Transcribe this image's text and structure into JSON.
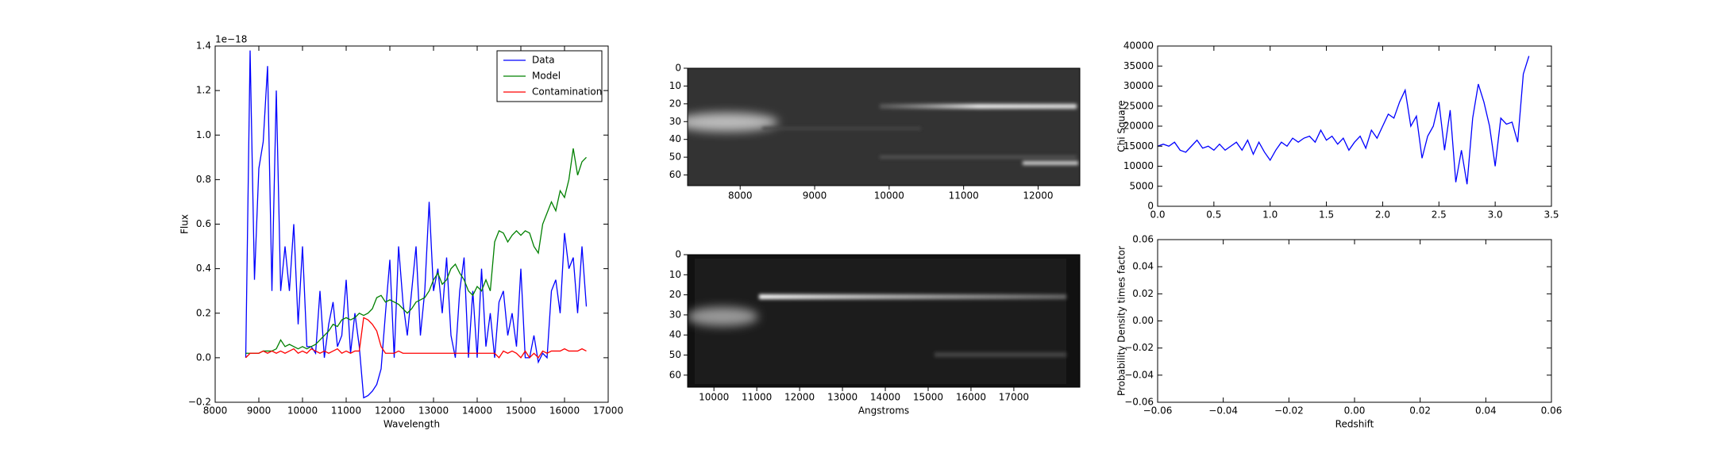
{
  "chart_data": [
    {
      "type": "line",
      "xlabel": "Wavelength",
      "ylabel": "Flux",
      "offset_text": "1e−18",
      "xlim": [
        8000,
        17000
      ],
      "xticks": [
        8000,
        9000,
        10000,
        11000,
        12000,
        13000,
        14000,
        15000,
        16000,
        17000
      ],
      "ylim": [
        -0.2,
        1.4
      ],
      "yticks": [
        {
          "value": -0.2,
          "label": "−0.2"
        },
        {
          "value": 0,
          "label": "0.0"
        },
        0.2,
        0.4,
        0.6,
        0.8,
        {
          "value": 1,
          "label": "1.0"
        },
        1.2,
        1.4
      ],
      "legend": "upper right",
      "x": [
        8700,
        8800,
        8900,
        9000,
        9100,
        9200,
        9300,
        9400,
        9500,
        9600,
        9700,
        9800,
        9900,
        10000,
        10100,
        10200,
        10300,
        10400,
        10500,
        10600,
        10700,
        10800,
        10900,
        11000,
        11100,
        11200,
        11300,
        11400,
        11500,
        11600,
        11700,
        11800,
        11900,
        12000,
        12100,
        12200,
        12300,
        12400,
        12500,
        12600,
        12700,
        12800,
        12900,
        13000,
        13100,
        13200,
        13300,
        13400,
        13500,
        13600,
        13700,
        13800,
        13900,
        14000,
        14100,
        14200,
        14300,
        14400,
        14500,
        14600,
        14700,
        14800,
        14900,
        15000,
        15100,
        15200,
        15300,
        15400,
        15500,
        15600,
        15700,
        15800,
        15900,
        16000,
        16100,
        16200,
        16300,
        16400,
        16500
      ],
      "series": [
        {
          "name": "Data",
          "color": "#0000ff",
          "values": [
            0.0,
            1.38,
            0.35,
            0.85,
            0.97,
            1.31,
            0.3,
            1.2,
            0.3,
            0.5,
            0.3,
            0.6,
            0.15,
            0.5,
            0.05,
            0.05,
            0.02,
            0.3,
            0.0,
            0.15,
            0.25,
            0.05,
            0.1,
            0.35,
            0.02,
            0.2,
            0.05,
            -0.18,
            -0.17,
            -0.15,
            -0.12,
            -0.05,
            0.2,
            0.44,
            0.0,
            0.5,
            0.25,
            0.1,
            0.3,
            0.5,
            0.1,
            0.3,
            0.7,
            0.3,
            0.4,
            0.2,
            0.45,
            0.1,
            0.0,
            0.3,
            0.45,
            0.0,
            0.3,
            0.0,
            0.4,
            0.05,
            0.2,
            0.0,
            0.25,
            0.3,
            0.1,
            0.2,
            0.05,
            0.4,
            0.0,
            0.0,
            0.1,
            -0.02,
            0.02,
            0.0,
            0.3,
            0.35,
            0.2,
            0.56,
            0.4,
            0.45,
            0.2,
            0.5,
            0.23
          ]
        },
        {
          "name": "Model",
          "color": "#008000",
          "values": [
            0.02,
            0.02,
            0.02,
            0.02,
            0.03,
            0.03,
            0.03,
            0.04,
            0.08,
            0.05,
            0.06,
            0.05,
            0.04,
            0.05,
            0.04,
            0.05,
            0.06,
            0.08,
            0.1,
            0.12,
            0.15,
            0.14,
            0.17,
            0.18,
            0.17,
            0.18,
            0.2,
            0.19,
            0.2,
            0.22,
            0.27,
            0.28,
            0.25,
            0.26,
            0.25,
            0.24,
            0.22,
            0.2,
            0.22,
            0.25,
            0.26,
            0.27,
            0.3,
            0.35,
            0.38,
            0.33,
            0.35,
            0.4,
            0.42,
            0.38,
            0.35,
            0.3,
            0.28,
            0.32,
            0.3,
            0.35,
            0.3,
            0.52,
            0.57,
            0.56,
            0.52,
            0.55,
            0.57,
            0.55,
            0.57,
            0.56,
            0.5,
            0.47,
            0.6,
            0.65,
            0.7,
            0.66,
            0.75,
            0.72,
            0.8,
            0.94,
            0.82,
            0.88,
            0.9
          ]
        },
        {
          "name": "Contamination",
          "color": "#ff0000",
          "values": [
            0.0,
            0.02,
            0.02,
            0.02,
            0.03,
            0.02,
            0.03,
            0.02,
            0.03,
            0.02,
            0.03,
            0.04,
            0.02,
            0.03,
            0.02,
            0.04,
            0.03,
            0.02,
            0.03,
            0.02,
            0.03,
            0.04,
            0.02,
            0.03,
            0.02,
            0.03,
            0.03,
            0.18,
            0.17,
            0.15,
            0.12,
            0.05,
            0.02,
            0.02,
            0.02,
            0.03,
            0.02,
            0.02,
            0.02,
            0.02,
            0.02,
            0.02,
            0.02,
            0.02,
            0.02,
            0.02,
            0.02,
            0.02,
            0.02,
            0.02,
            0.02,
            0.02,
            0.02,
            0.02,
            0.02,
            0.02,
            0.02,
            0.02,
            0.0,
            0.03,
            0.02,
            0.03,
            0.02,
            0.0,
            0.03,
            0.0,
            0.02,
            0.0,
            0.03,
            0.02,
            0.03,
            0.03,
            0.03,
            0.04,
            0.03,
            0.03,
            0.03,
            0.04,
            0.03
          ]
        }
      ]
    },
    {
      "type": "image",
      "xlim": [
        7294,
        12560
      ],
      "xticks": [
        8000,
        9000,
        10000,
        11000,
        12000
      ],
      "ylim": [
        66,
        0
      ],
      "yticks": [
        0,
        10,
        20,
        30,
        40,
        50,
        60
      ]
    },
    {
      "type": "image",
      "xlabel": "Angstroms",
      "xlim": [
        9385,
        18540
      ],
      "xticks": [
        10000,
        11000,
        12000,
        13000,
        14000,
        15000,
        16000,
        17000
      ],
      "ylim": [
        66,
        0
      ],
      "yticks": [
        0,
        10,
        20,
        30,
        40,
        50,
        60
      ]
    },
    {
      "type": "line",
      "ylabel": "Chi Square",
      "xlim": [
        0,
        3.5
      ],
      "xticks": [
        {
          "value": 0,
          "label": "0.0"
        },
        0.5,
        {
          "value": 1,
          "label": "1.0"
        },
        1.5,
        {
          "value": 2,
          "label": "2.0"
        },
        2.5,
        {
          "value": 3,
          "label": "3.0"
        },
        3.5
      ],
      "ylim": [
        0,
        40000
      ],
      "yticks": [
        0,
        5000,
        10000,
        15000,
        20000,
        25000,
        30000,
        35000,
        40000
      ],
      "x": [
        0,
        0.05,
        0.1,
        0.15,
        0.2,
        0.25,
        0.3,
        0.35,
        0.4,
        0.45,
        0.5,
        0.55,
        0.6,
        0.65,
        0.7,
        0.75,
        0.8,
        0.85,
        0.9,
        0.95,
        1.0,
        1.05,
        1.1,
        1.15,
        1.2,
        1.25,
        1.3,
        1.35,
        1.4,
        1.45,
        1.5,
        1.55,
        1.6,
        1.65,
        1.7,
        1.75,
        1.8,
        1.85,
        1.9,
        1.95,
        2.0,
        2.05,
        2.1,
        2.15,
        2.2,
        2.25,
        2.3,
        2.35,
        2.4,
        2.45,
        2.5,
        2.55,
        2.6,
        2.65,
        2.7,
        2.75,
        2.8,
        2.85,
        2.9,
        2.95,
        3.0,
        3.05,
        3.1,
        3.15,
        3.2,
        3.25,
        3.3
      ],
      "series": [
        {
          "color": "#0000ff",
          "values": [
            15000,
            15500,
            15000,
            16000,
            14000,
            13500,
            15000,
            16500,
            14500,
            15000,
            14000,
            15500,
            14000,
            15000,
            16000,
            14000,
            16500,
            13000,
            16000,
            13500,
            11500,
            14000,
            16000,
            15000,
            17000,
            16000,
            17000,
            17500,
            16000,
            19000,
            16500,
            17500,
            15500,
            17000,
            14000,
            16000,
            17500,
            14500,
            19000,
            17000,
            20000,
            23000,
            22000,
            26000,
            29000,
            20000,
            22500,
            12000,
            17500,
            20000,
            26000,
            14000,
            24000,
            6000,
            14000,
            5500,
            22000,
            30500,
            26000,
            20000,
            10000,
            22000,
            20500,
            21000,
            16000,
            33000,
            37500
          ]
        }
      ]
    },
    {
      "type": "line",
      "xlabel": "Redshift",
      "ylabel": "Probability Density times factor",
      "xlim": [
        -0.06,
        0.06
      ],
      "xticks": [
        {
          "value": -0.06,
          "label": "−0.06"
        },
        {
          "value": -0.04,
          "label": "−0.04"
        },
        {
          "value": -0.02,
          "label": "−0.02"
        },
        {
          "value": 0,
          "label": "0.00"
        },
        0.02,
        0.04,
        0.06
      ],
      "ylim": [
        -0.06,
        0.06
      ],
      "yticks": [
        {
          "value": -0.06,
          "label": "−0.06"
        },
        {
          "value": -0.04,
          "label": "−0.04"
        },
        {
          "value": -0.02,
          "label": "−0.02"
        },
        {
          "value": 0,
          "label": "0.00"
        },
        0.02,
        0.04,
        0.06
      ],
      "series": []
    }
  ]
}
